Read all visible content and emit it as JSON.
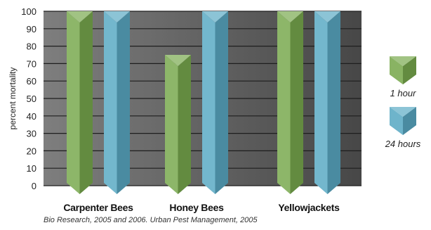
{
  "chart_data": {
    "type": "bar",
    "categories": [
      "Carpenter Bees",
      "Honey Bees",
      "Yellowjackets"
    ],
    "series": [
      {
        "name": "1 hour",
        "values": [
          100,
          75,
          100
        ],
        "color": "#79a94e"
      },
      {
        "name": "24 hours",
        "values": [
          100,
          100,
          100
        ],
        "color": "#5aaac4"
      }
    ],
    "ylabel": "percent mortality",
    "ylim": [
      0,
      100
    ],
    "yticks": [
      0,
      10,
      20,
      30,
      40,
      50,
      60,
      70,
      80,
      90,
      100
    ],
    "grid": true,
    "legend_position": "right",
    "plot_background": [
      "#7d7d7d",
      "#4a4a4a"
    ],
    "source": "Bio Research, 2005 and 2006. Urban Pest Management, 2005"
  }
}
